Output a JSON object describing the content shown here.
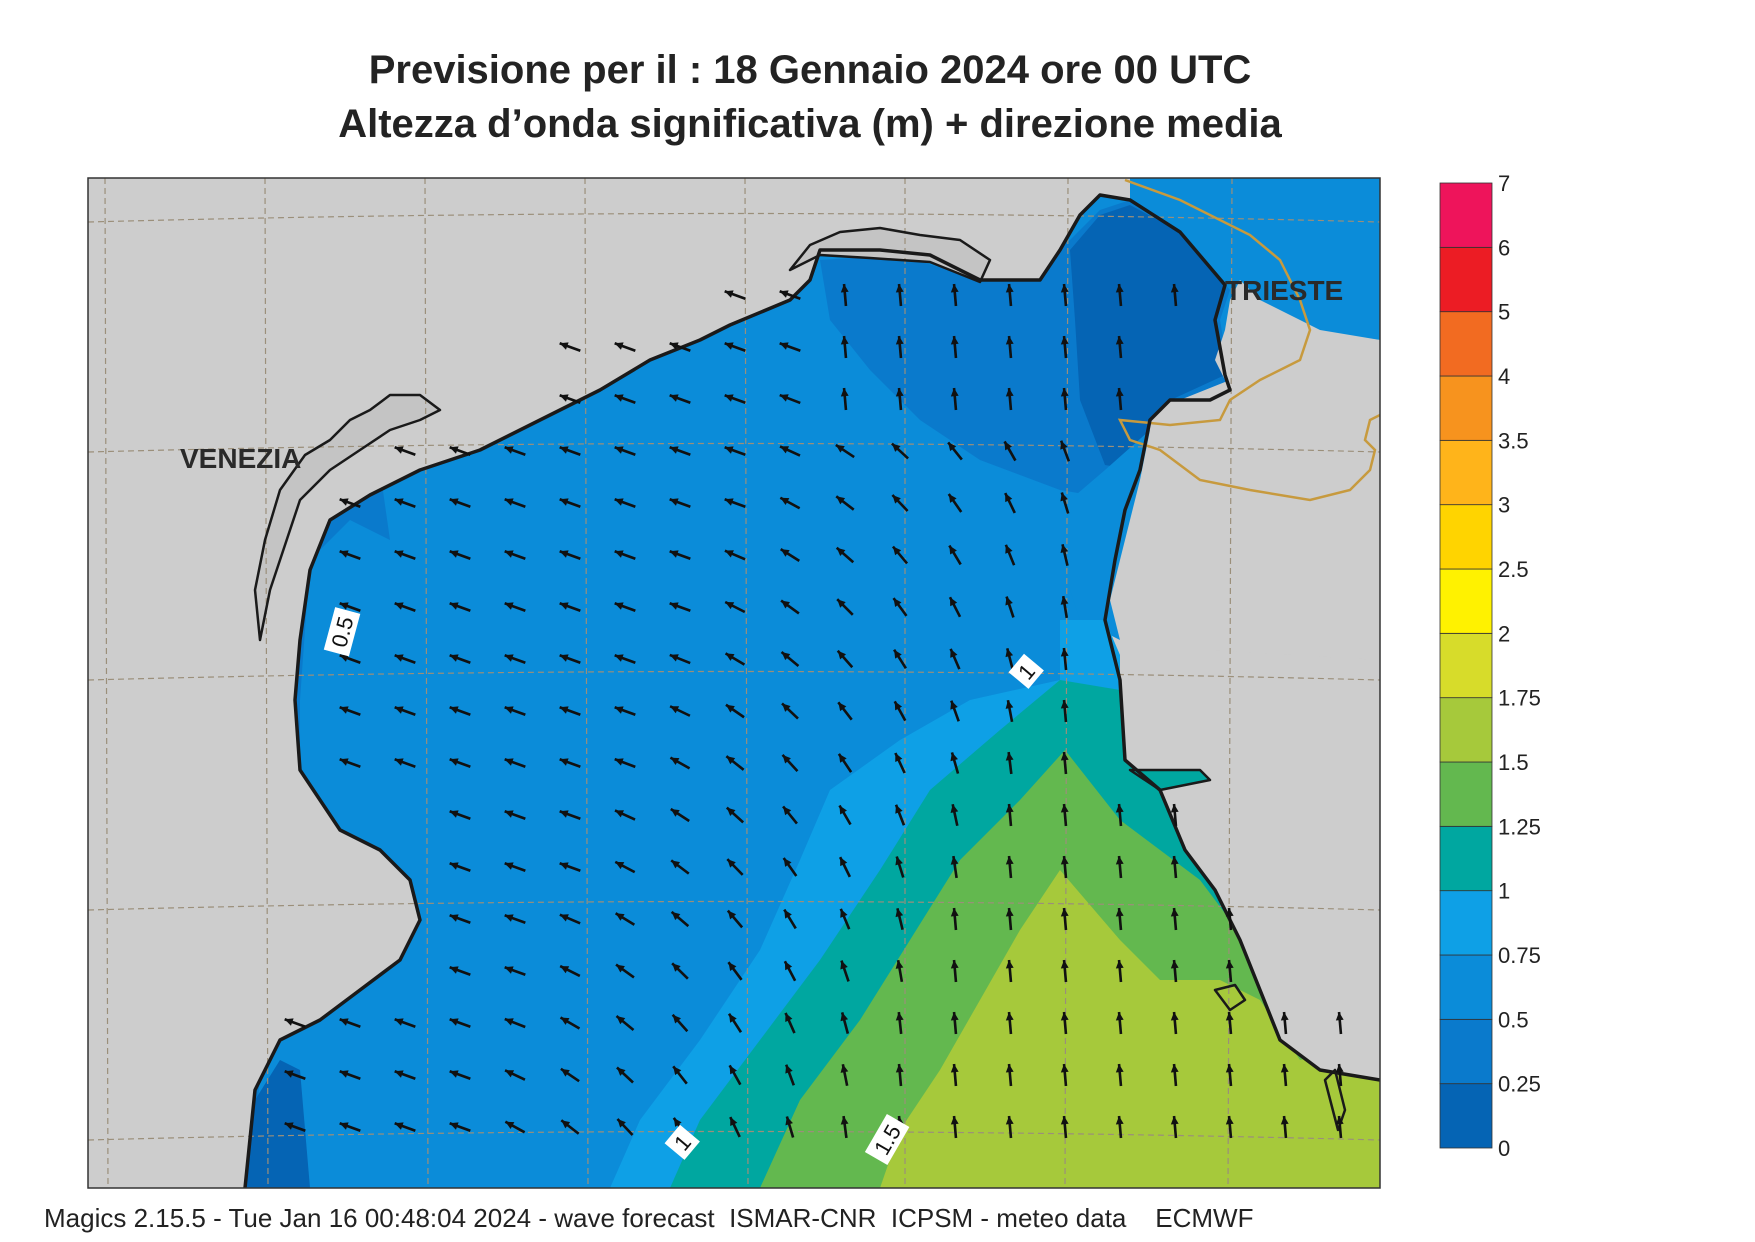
{
  "header": {
    "title_line1": "Previsione per il  :  18  Gennaio  2024    ore 00 UTC",
    "title_line2": "Altezza d’onda significativa (m) + direzione media"
  },
  "map": {
    "cities": [
      {
        "name": "VENEZIA"
      },
      {
        "name": "TRIESTE"
      }
    ],
    "contour_labels": [
      {
        "text": "0.5"
      },
      {
        "text": "1"
      },
      {
        "text": "1"
      },
      {
        "text": "1.5"
      }
    ],
    "colors": {
      "land": "#cdcdcd",
      "lagoon": "#c4c4c4",
      "coast": "#1a1a1a",
      "border": "#c79a3e",
      "grid": "#9b8f7a"
    }
  },
  "legend": {
    "ticks": [
      "0",
      "0.25",
      "0.5",
      "0.75",
      "1",
      "1.25",
      "1.5",
      "1.75",
      "2",
      "2.5",
      "3",
      "3.5",
      "4",
      "5",
      "6",
      "7"
    ],
    "colors": [
      "#0564b4",
      "#0a7acc",
      "#0b8cd9",
      "#0ea0e6",
      "#00a7a0",
      "#63b84f",
      "#a6c93b",
      "#d7dc2a",
      "#fff200",
      "#ffd400",
      "#ffb41a",
      "#f7931e",
      "#f26b21",
      "#ec1c24",
      "#ee145b"
    ]
  },
  "footer": {
    "text": "Magics 2.15.5 - Tue Jan 16 00:48:04 2024 - wave forecast  ISMAR-CNR  ICPSM - meteo data    ECMWF"
  }
}
